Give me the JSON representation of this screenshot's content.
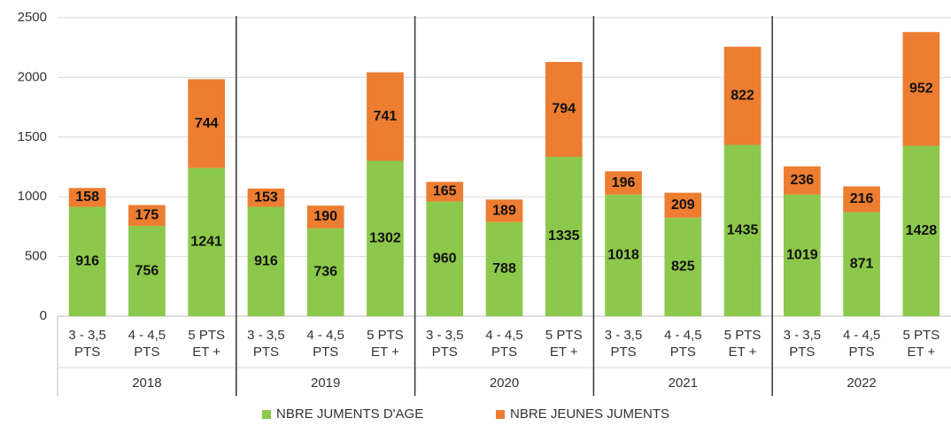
{
  "chart_data": {
    "type": "stacked-bar",
    "groups": [
      "2018",
      "2019",
      "2020",
      "2021",
      "2022"
    ],
    "categories": [
      "3 - 3,5 PTS",
      "4 - 4,5 PTS",
      "5 PTS ET +",
      "3 - 3,5 PTS",
      "4 - 4,5 PTS",
      "5 PTS ET +",
      "3 - 3,5 PTS",
      "4 - 4,5 PTS",
      "5 PTS ET +",
      "3 - 3,5 PTS",
      "4 - 4,5 PTS",
      "5 PTS ET +",
      "3 - 3,5 PTS",
      "4 - 4,5 PTS",
      "5 PTS ET +"
    ],
    "series": [
      {
        "name": "NBRE JUMENTS D'AGE",
        "color": "#8cc84b",
        "values": [
          916,
          756,
          1241,
          916,
          736,
          1302,
          960,
          788,
          1335,
          1018,
          825,
          1435,
          1019,
          871,
          1428
        ]
      },
      {
        "name": "NBRE JEUNES JUMENTS",
        "color": "#ed7d31",
        "values": [
          158,
          175,
          744,
          153,
          190,
          741,
          165,
          189,
          794,
          196,
          209,
          822,
          236,
          216,
          952
        ]
      }
    ],
    "ylim": [
      0,
      2500
    ],
    "yticks": [
      0,
      500,
      1000,
      1500,
      2000,
      2500
    ],
    "grid": true,
    "legend": "bottom"
  }
}
